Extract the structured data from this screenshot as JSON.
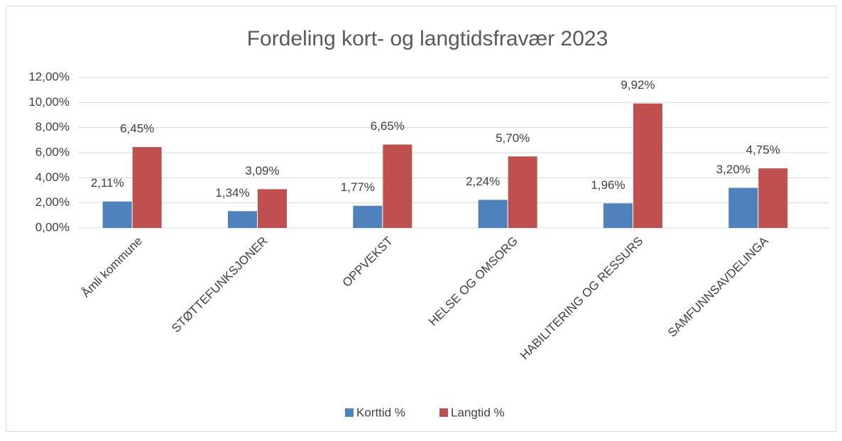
{
  "chart_data": {
    "type": "bar",
    "title": "Fordeling kort- og langtidsfravær 2023",
    "categories": [
      "Åmli kommune",
      "STØTTEFUNKSJONER",
      "OPPVEKST",
      "HELSE OG OMSORG",
      "HABILITERING OG RESSURS",
      "SAMFUNNSAVDELINGA"
    ],
    "series": [
      {
        "name": "Korttid %",
        "color": "#4f81bd",
        "values": [
          2.11,
          1.34,
          1.77,
          2.24,
          1.96,
          3.2
        ],
        "value_labels": [
          "2,11%",
          "1,34%",
          "1,77%",
          "2,24%",
          "1,96%",
          "3,20%"
        ]
      },
      {
        "name": "Langtid %",
        "color": "#c0504d",
        "values": [
          6.45,
          3.09,
          6.65,
          5.7,
          9.92,
          4.75
        ],
        "value_labels": [
          "6,45%",
          "3,09%",
          "6,65%",
          "5,70%",
          "9,92%",
          "4,75%"
        ]
      }
    ],
    "ylim": [
      0,
      12
    ],
    "yticks": [
      {
        "value": 0,
        "label": "0,00%"
      },
      {
        "value": 2,
        "label": "2,00%"
      },
      {
        "value": 4,
        "label": "4,00%"
      },
      {
        "value": 6,
        "label": "6,00%"
      },
      {
        "value": 8,
        "label": "8,00%"
      },
      {
        "value": 10,
        "label": "10,00%"
      },
      {
        "value": 12,
        "label": "12,00%"
      }
    ],
    "grid": true,
    "legend": "bottom"
  }
}
